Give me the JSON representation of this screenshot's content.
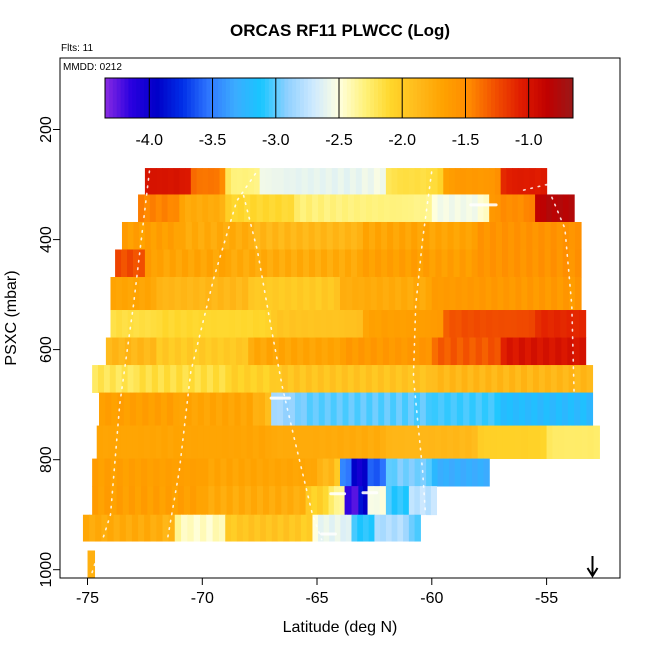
{
  "chart_data": {
    "type": "heatmap",
    "title": "ORCAS RF11 PLWCC (Log)",
    "flights_label": "Flts: 11",
    "date_label": "MMDD: 0212",
    "xlabel": "Latitude (deg N)",
    "ylabel": "PSXC (mbar)",
    "xlim": [
      -76.2,
      -51.8
    ],
    "ylim": [
      1015,
      70
    ],
    "y_reversed": true,
    "xticks": [
      -75,
      -70,
      -65,
      -60,
      -55
    ],
    "yticks": [
      200,
      400,
      600,
      800,
      1000
    ],
    "colorbar": {
      "range": [
        -4.35,
        -0.65
      ],
      "ticks": [
        -4.0,
        -3.5,
        -3.0,
        -2.5,
        -2.0,
        -1.5,
        -1.0
      ],
      "tick_labels": [
        "-4.0",
        "-3.5",
        "-3.0",
        "-2.5",
        "-2.0",
        "-1.5",
        "-1.0"
      ],
      "colors": [
        "#8a2be2",
        "#2a00e0",
        "#0000c8",
        "#0030e8",
        "#2f78ff",
        "#3cabff",
        "#18c6ff",
        "#8fd0ff",
        "#cde9ff",
        "#ffffe0",
        "#fff27a",
        "#ffd62a",
        "#ffbb1c",
        "#ffa200",
        "#ff8a00",
        "#f25000",
        "#e01c00",
        "#c00000",
        "#9a1818"
      ]
    },
    "arrow_marker_lat": -53.0,
    "bands": [
      {
        "p": [
          270,
          318
        ],
        "lat": [
          -72.5,
          -55.0
        ],
        "segments": [
          {
            "lat": [
              -72.5,
              -70.5
            ],
            "v": -1.0
          },
          {
            "lat": [
              -70.5,
              -69.0
            ],
            "v": -1.4
          },
          {
            "lat": [
              -69.0,
              -67.5
            ],
            "v": -2.3
          },
          {
            "lat": [
              -67.5,
              -62.0
            ],
            "v": -2.6
          },
          {
            "lat": [
              -62.0,
              -59.5
            ],
            "v": -2.15
          },
          {
            "lat": [
              -59.5,
              -57.0
            ],
            "v": -1.6
          },
          {
            "lat": [
              -57.0,
              -55.0
            ],
            "v": -1.05
          }
        ]
      },
      {
        "p": [
          318,
          368
        ],
        "lat": [
          -72.8,
          -53.8
        ],
        "segments": [
          {
            "lat": [
              -72.8,
              -71.0
            ],
            "v": -1.45
          },
          {
            "lat": [
              -71.0,
              -69.0
            ],
            "v": -1.75
          },
          {
            "lat": [
              -69.0,
              -66.0
            ],
            "v": -2.1
          },
          {
            "lat": [
              -66.0,
              -60.0
            ],
            "v": -2.3
          },
          {
            "lat": [
              -60.0,
              -57.5
            ],
            "v": -2.55
          },
          {
            "lat": [
              -57.5,
              -55.5
            ],
            "v": -1.5
          },
          {
            "lat": [
              -55.5,
              -53.8
            ],
            "v": -0.8
          }
        ]
      },
      {
        "p": [
          368,
          418
        ],
        "lat": [
          -73.5,
          -53.5
        ],
        "segments": [
          {
            "lat": [
              -73.5,
              -71.0
            ],
            "v": -1.65
          },
          {
            "lat": [
              -71.0,
              -68.0
            ],
            "v": -1.75
          },
          {
            "lat": [
              -68.0,
              -63.0
            ],
            "v": -1.85
          },
          {
            "lat": [
              -63.0,
              -58.0
            ],
            "v": -1.7
          },
          {
            "lat": [
              -58.0,
              -53.5
            ],
            "v": -1.55
          }
        ]
      },
      {
        "p": [
          418,
          468
        ],
        "lat": [
          -73.8,
          -53.5
        ],
        "segments": [
          {
            "lat": [
              -73.8,
              -72.5
            ],
            "v": -1.25
          },
          {
            "lat": [
              -72.5,
              -69.0
            ],
            "v": -1.7
          },
          {
            "lat": [
              -69.0,
              -63.0
            ],
            "v": -1.75
          },
          {
            "lat": [
              -63.0,
              -58.0
            ],
            "v": -1.65
          },
          {
            "lat": [
              -58.0,
              -53.5
            ],
            "v": -1.55
          }
        ]
      },
      {
        "p": [
          468,
          528
        ],
        "lat": [
          -74.0,
          -53.5
        ],
        "segments": [
          {
            "lat": [
              -74.0,
              -72.0
            ],
            "v": -1.7
          },
          {
            "lat": [
              -72.0,
              -68.0
            ],
            "v": -1.85
          },
          {
            "lat": [
              -68.0,
              -64.0
            ],
            "v": -2.0
          },
          {
            "lat": [
              -64.0,
              -60.0
            ],
            "v": -1.75
          },
          {
            "lat": [
              -60.0,
              -53.5
            ],
            "v": -1.6
          }
        ]
      },
      {
        "p": [
          528,
          578
        ],
        "lat": [
          -74.0,
          -53.3
        ],
        "segments": [
          {
            "lat": [
              -74.0,
              -72.0
            ],
            "v": -2.15
          },
          {
            "lat": [
              -72.0,
              -67.0
            ],
            "v": -2.1
          },
          {
            "lat": [
              -67.0,
              -63.0
            ],
            "v": -1.95
          },
          {
            "lat": [
              -63.0,
              -59.5
            ],
            "v": -1.65
          },
          {
            "lat": [
              -59.5,
              -55.5
            ],
            "v": -1.25
          },
          {
            "lat": [
              -55.5,
              -53.3
            ],
            "v": -1.1
          }
        ]
      },
      {
        "p": [
          578,
          628
        ],
        "lat": [
          -74.2,
          -53.3
        ],
        "segments": [
          {
            "lat": [
              -74.2,
              -72.0
            ],
            "v": -1.85
          },
          {
            "lat": [
              -72.0,
              -68.0
            ],
            "v": -2.0
          },
          {
            "lat": [
              -68.0,
              -64.0
            ],
            "v": -1.7
          },
          {
            "lat": [
              -64.0,
              -60.0
            ],
            "v": -1.6
          },
          {
            "lat": [
              -60.0,
              -57.0
            ],
            "v": -1.3
          },
          {
            "lat": [
              -57.0,
              -53.3
            ],
            "v": -1.0
          }
        ]
      },
      {
        "p": [
          628,
          678
        ],
        "lat": [
          -74.8,
          -53.0
        ],
        "segments": [
          {
            "lat": [
              -74.8,
              -73.0
            ],
            "v": -2.2
          },
          {
            "lat": [
              -73.0,
              -69.0
            ],
            "v": -2.15
          },
          {
            "lat": [
              -69.0,
              -66.8
            ],
            "v": -2.05
          },
          {
            "lat": [
              -66.8,
              -60.0
            ],
            "v": -1.95
          },
          {
            "lat": [
              -60.0,
              -53.0
            ],
            "v": -1.85
          }
        ]
      },
      {
        "p": [
          678,
          738
        ],
        "lat": [
          -74.5,
          -53.0
        ],
        "segments": [
          {
            "lat": [
              -74.5,
              -71.0
            ],
            "v": -1.65
          },
          {
            "lat": [
              -71.0,
              -67.0
            ],
            "v": -1.7
          },
          {
            "lat": [
              -67.0,
              -60.0
            ],
            "v": -3.0
          },
          {
            "lat": [
              -60.0,
              -57.0
            ],
            "v": -3.05
          },
          {
            "lat": [
              -57.0,
              -53.0
            ],
            "v": -3.2
          }
        ]
      },
      {
        "p": [
          738,
          798
        ],
        "lat": [
          -74.6,
          -52.7
        ],
        "segments": [
          {
            "lat": [
              -74.6,
              -71.0
            ],
            "v": -1.7
          },
          {
            "lat": [
              -71.0,
              -67.0
            ],
            "v": -1.7
          },
          {
            "lat": [
              -67.0,
              -62.0
            ],
            "v": -1.75
          },
          {
            "lat": [
              -62.0,
              -58.0
            ],
            "v": -1.85
          },
          {
            "lat": [
              -58.0,
              -55.0
            ],
            "v": -2.05
          },
          {
            "lat": [
              -55.0,
              -52.7
            ],
            "v": -2.25
          }
        ]
      },
      {
        "p": [
          798,
          848
        ],
        "lat": [
          -74.8,
          -57.5
        ],
        "segments": [
          {
            "lat": [
              -74.8,
              -70.0
            ],
            "v": -1.65
          },
          {
            "lat": [
              -70.0,
              -65.0
            ],
            "v": -1.7
          },
          {
            "lat": [
              -65.0,
              -64.0
            ],
            "v": -1.85
          },
          {
            "lat": [
              -64.0,
              -63.5
            ],
            "v": -3.5
          },
          {
            "lat": [
              -63.5,
              -62.8
            ],
            "v": -4.0
          },
          {
            "lat": [
              -62.8,
              -62.0
            ],
            "v": -3.6
          },
          {
            "lat": [
              -62.0,
              -60.0
            ],
            "v": -2.95
          },
          {
            "lat": [
              -60.0,
              -57.5
            ],
            "v": -3.3
          }
        ]
      },
      {
        "p": [
          848,
          900
        ],
        "lat": [
          -74.8,
          -59.8
        ],
        "segments": [
          {
            "lat": [
              -74.8,
              -70.0
            ],
            "v": -1.65
          },
          {
            "lat": [
              -70.0,
              -65.5
            ],
            "v": -1.75
          },
          {
            "lat": [
              -65.5,
              -64.5
            ],
            "v": -2.05
          },
          {
            "lat": [
              -64.5,
              -63.8
            ],
            "v": -2.3
          },
          {
            "lat": [
              -63.8,
              -63.2
            ],
            "v": -4.2
          },
          {
            "lat": [
              -63.2,
              -62.8
            ],
            "v": -3.9
          },
          {
            "lat": [
              -62.8,
              -62.0
            ],
            "v": -2.5
          },
          {
            "lat": [
              -62.0,
              -61.0
            ],
            "v": -3.1
          },
          {
            "lat": [
              -61.0,
              -59.8
            ],
            "v": -2.75
          }
        ]
      },
      {
        "p": [
          900,
          948
        ],
        "lat": [
          -75.2,
          -60.5
        ],
        "segments": [
          {
            "lat": [
              -75.2,
              -71.2
            ],
            "v": -1.75
          },
          {
            "lat": [
              -71.2,
              -69.0
            ],
            "v": -2.45
          },
          {
            "lat": [
              -69.0,
              -65.2
            ],
            "v": -1.95
          },
          {
            "lat": [
              -65.2,
              -63.5
            ],
            "v": -2.6
          },
          {
            "lat": [
              -63.5,
              -62.5
            ],
            "v": -3.1
          },
          {
            "lat": [
              -62.5,
              -61.0
            ],
            "v": -2.8
          },
          {
            "lat": [
              -61.0,
              -60.5
            ],
            "v": -3.0
          }
        ]
      },
      {
        "p": [
          965,
          1015
        ],
        "lat": [
          -75.0,
          -74.7
        ],
        "segments": [
          {
            "lat": [
              -75.0,
              -74.7
            ],
            "v": -1.8
          }
        ]
      }
    ]
  }
}
